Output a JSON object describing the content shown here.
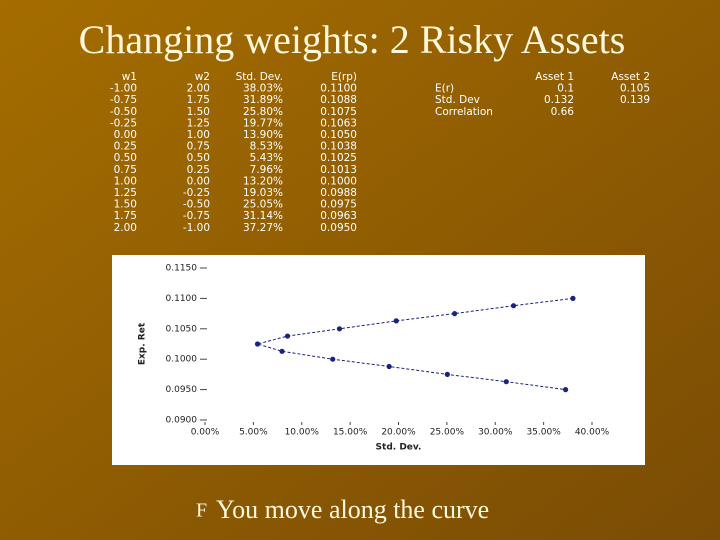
{
  "title": "Changing weights: 2 Risky Assets",
  "table": {
    "header": [
      "w1",
      "w2",
      "Std. Dev.",
      "E(rp)"
    ],
    "rows": [
      [
        "-1.00",
        "2.00",
        "38.03%",
        "0.1100"
      ],
      [
        "-0.75",
        "1.75",
        "31.89%",
        "0.1088"
      ],
      [
        "-0.50",
        "1.50",
        "25.80%",
        "0.1075"
      ],
      [
        "-0.25",
        "1.25",
        "19.77%",
        "0.1063"
      ],
      [
        "0.00",
        "1.00",
        "13.90%",
        "0.1050"
      ],
      [
        "0.25",
        "0.75",
        "8.53%",
        "0.1038"
      ],
      [
        "0.50",
        "0.50",
        "5.43%",
        "0.1025"
      ],
      [
        "0.75",
        "0.25",
        "7.96%",
        "0.1013"
      ],
      [
        "1.00",
        "0.00",
        "13.20%",
        "0.1000"
      ],
      [
        "1.25",
        "-0.25",
        "19.03%",
        "0.0988"
      ],
      [
        "1.50",
        "-0.50",
        "25.05%",
        "0.0975"
      ],
      [
        "1.75",
        "-0.75",
        "31.14%",
        "0.0963"
      ],
      [
        "2.00",
        "-1.00",
        "37.27%",
        "0.0950"
      ]
    ]
  },
  "params": {
    "header": [
      "Asset 1",
      "Asset 2"
    ],
    "rows": [
      [
        "E(r)",
        "0.1",
        "0.105"
      ],
      [
        "Std. Dev",
        "0.132",
        "0.139"
      ],
      [
        "Correlation",
        "0.66"
      ]
    ]
  },
  "chart_data": {
    "type": "line",
    "x_label": "Std. Dev.",
    "y_label": "Exp. Ret",
    "x": [
      38.03,
      31.89,
      25.8,
      19.77,
      13.9,
      8.53,
      5.43,
      7.96,
      13.2,
      19.03,
      25.05,
      31.14,
      37.27
    ],
    "series": [
      {
        "color": "#1a237e",
        "values": [
          0.11,
          0.1088,
          0.1075,
          0.1063,
          0.105,
          0.1038,
          0.1025,
          0.1013,
          0.1,
          0.0988,
          0.0975,
          0.0963,
          0.095
        ]
      }
    ],
    "xlim": [
      0,
      40
    ],
    "ylim": [
      0.09,
      0.115
    ],
    "xticks": [
      {
        "value": 0,
        "label": "0.00%"
      },
      {
        "value": 5,
        "label": "5.00%"
      },
      {
        "value": 10,
        "label": "10.00%"
      },
      {
        "value": 15,
        "label": "15.00%"
      },
      {
        "value": 20,
        "label": "20.00%"
      },
      {
        "value": 25,
        "label": "25.00%"
      },
      {
        "value": 30,
        "label": "30.00%"
      },
      {
        "value": 35,
        "label": "35.00%"
      },
      {
        "value": 40,
        "label": "40.00%"
      }
    ],
    "yticks": [
      {
        "value": 0.09,
        "label": "0.0900"
      },
      {
        "value": 0.095,
        "label": "0.0950"
      },
      {
        "value": 0.1,
        "label": "0.1000"
      },
      {
        "value": 0.105,
        "label": "0.1050"
      },
      {
        "value": 0.11,
        "label": "0.1100"
      },
      {
        "value": 0.115,
        "label": "0.1150"
      }
    ]
  },
  "bullet": {
    "marker": "F",
    "text": "You move along the curve"
  }
}
